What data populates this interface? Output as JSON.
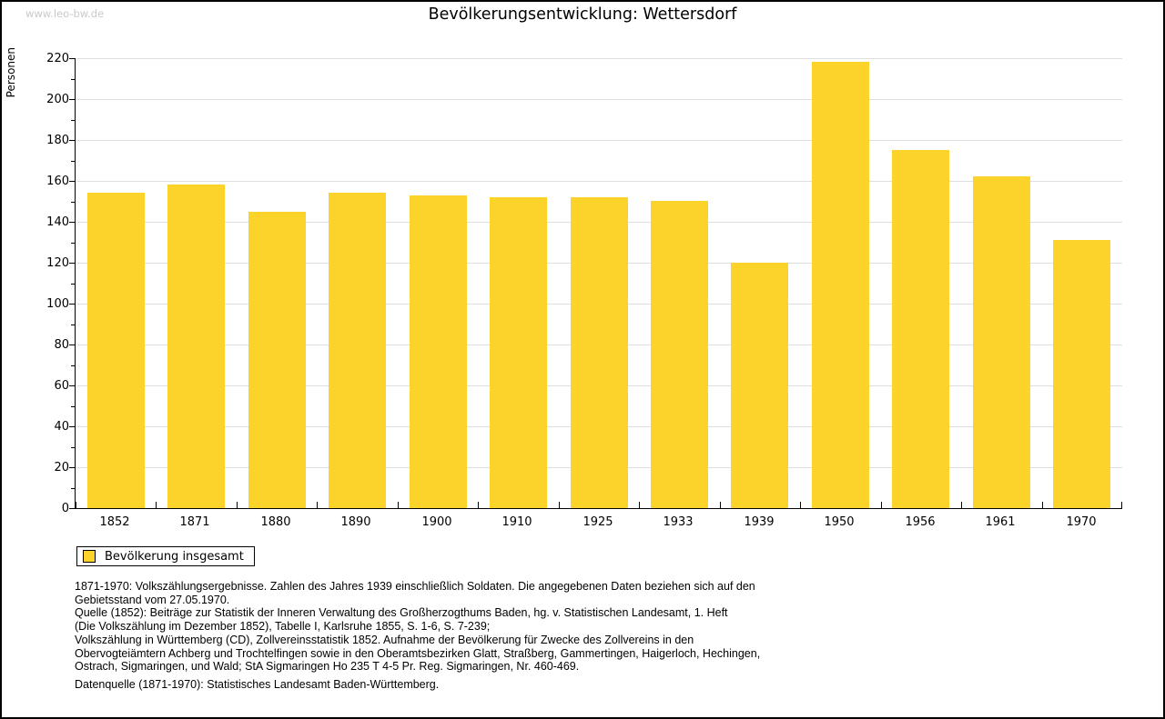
{
  "watermark": "www.leo-bw.de",
  "title": "Bevölkerungsentwicklung: Wettersdorf",
  "legend": {
    "label": "Bevölkerung insgesamt"
  },
  "colors": {
    "bar": "#FCD32B",
    "grid": "#DFDFDF",
    "axis": "#000000",
    "watermark": "#C9C9C9"
  },
  "chart_data": {
    "type": "bar",
    "title": "Bevölkerungsentwicklung: Wettersdorf",
    "series_name": "Bevölkerung insgesamt",
    "categories": [
      "1852",
      "1871",
      "1880",
      "1890",
      "1900",
      "1910",
      "1925",
      "1933",
      "1939",
      "1950",
      "1956",
      "1961",
      "1970"
    ],
    "values": [
      154,
      158,
      145,
      154,
      153,
      152,
      152,
      150,
      120,
      218,
      175,
      162,
      131
    ],
    "xlabel": "",
    "ylabel": "Personen",
    "ylim": [
      0,
      220
    ],
    "ytick_step": 20,
    "yticks": [
      0,
      20,
      40,
      60,
      80,
      100,
      120,
      140,
      160,
      180,
      200,
      220
    ],
    "minor_tick_step": 10,
    "grid": true,
    "legend_position": "bottom-left",
    "bar_color": "#FCD32B"
  },
  "footnotes": {
    "lines": [
      "1871-1970: Volkszählungsergebnisse. Zahlen des Jahres 1939 einschließlich Soldaten. Die angegebenen Daten beziehen sich auf den",
      "Gebietsstand vom 27.05.1970.",
      "Quelle (1852): Beiträge zur Statistik der Inneren Verwaltung des Großherzogthums Baden, hg. v. Statistischen Landesamt, 1. Heft",
      "(Die Volkszählung im Dezember 1852), Tabelle I, Karlsruhe 1855, S. 1-6, S. 7-239;",
      "Volkszählung in Württemberg (CD), Zollvereinsstatistik 1852. Aufnahme der Bevölkerung für Zwecke des Zollvereins in den",
      "Obervogteiämtern Achberg und Trochtelfingen sowie in den Oberamtsbezirken Glatt, Straßberg, Gammertingen, Haigerloch, Hechingen,",
      "Ostrach, Sigmaringen, und Wald; StA Sigmaringen Ho 235 T 4-5 Pr. Reg. Sigmaringen, Nr. 460-469."
    ],
    "datasource": "Datenquelle (1871-1970): Statistisches Landesamt Baden-Württemberg."
  }
}
